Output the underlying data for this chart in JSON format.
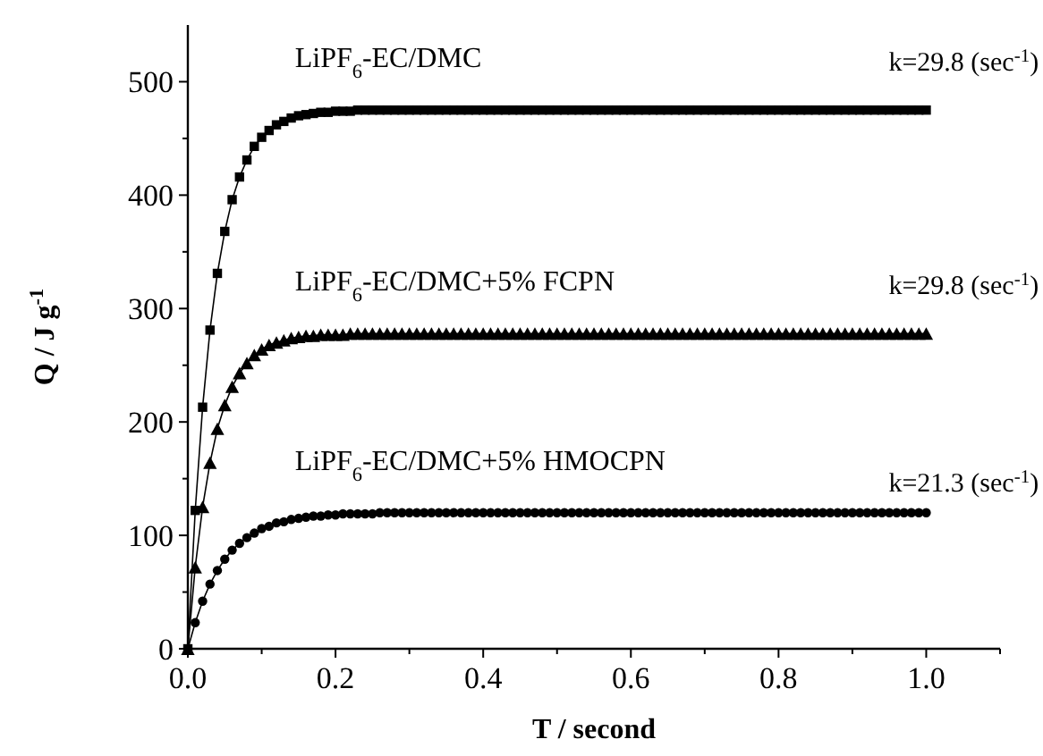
{
  "chart_data": {
    "type": "line",
    "xlabel": "T / second",
    "ylabel": "Q / J g$^{-1}$",
    "xlim": [
      0,
      1.1
    ],
    "ylim": [
      0,
      550
    ],
    "xticks": [
      {
        "value": 0,
        "label": "0.0"
      },
      {
        "value": 0.1,
        "label": null
      },
      {
        "value": 0.2,
        "label": "0.2"
      },
      {
        "value": 0.3,
        "label": null
      },
      {
        "value": 0.4,
        "label": "0.4"
      },
      {
        "value": 0.5,
        "label": null
      },
      {
        "value": 0.6,
        "label": "0.6"
      },
      {
        "value": 0.7,
        "label": null
      },
      {
        "value": 0.8,
        "label": "0.8"
      },
      {
        "value": 0.9,
        "label": null
      },
      {
        "value": 1,
        "label": "1.0"
      },
      {
        "value": 1.1,
        "label": null
      }
    ],
    "yticks": [
      0,
      {
        "value": 50,
        "label": null
      },
      100,
      {
        "value": 150,
        "label": null
      },
      200,
      {
        "value": 250,
        "label": null
      },
      300,
      {
        "value": 350,
        "label": null
      },
      400,
      {
        "value": 450,
        "label": null
      },
      500
    ],
    "x": [
      0,
      0.01,
      0.02,
      0.03,
      0.04,
      0.05,
      0.06,
      0.07,
      0.08,
      0.09,
      0.1,
      0.11,
      0.12,
      0.13,
      0.14,
      0.15,
      0.16,
      0.17,
      0.18,
      0.19,
      0.2,
      0.21,
      0.22,
      0.23,
      0.24,
      0.25,
      0.26,
      0.27,
      0.28,
      0.29,
      0.3,
      0.31,
      0.32,
      0.33,
      0.34,
      0.35,
      0.36,
      0.37,
      0.38,
      0.39,
      0.4,
      0.41,
      0.42,
      0.43,
      0.44,
      0.45,
      0.46,
      0.47,
      0.48,
      0.49,
      0.5,
      0.51,
      0.52,
      0.53,
      0.54,
      0.55,
      0.56,
      0.57,
      0.58,
      0.59,
      0.6,
      0.61,
      0.62,
      0.63,
      0.64,
      0.65,
      0.66,
      0.67,
      0.68,
      0.69,
      0.7,
      0.71,
      0.72,
      0.73,
      0.74,
      0.75,
      0.76,
      0.77,
      0.78,
      0.79,
      0.8,
      0.81,
      0.82,
      0.83,
      0.84,
      0.85,
      0.86,
      0.87,
      0.88,
      0.89,
      0.9,
      0.91,
      0.92,
      0.93,
      0.94,
      0.95,
      0.96,
      0.97,
      0.98,
      0.99,
      1
    ],
    "series": [
      {
        "name": "LiPF$_{6}$-EC/DMC",
        "color": "#000000",
        "marker": "square",
        "values": [
          0,
          122,
          213,
          281,
          331,
          368,
          396,
          416,
          431,
          443,
          451,
          457,
          462,
          465,
          468,
          470,
          471,
          472,
          473,
          473,
          474,
          474,
          474,
          475,
          475,
          475,
          475,
          475,
          475,
          475,
          475,
          475,
          475,
          475,
          475,
          475,
          475,
          475,
          475,
          475,
          475,
          475,
          475,
          475,
          475,
          475,
          475,
          475,
          475,
          475,
          475,
          475,
          475,
          475,
          475,
          475,
          475,
          475,
          475,
          475,
          475,
          475,
          475,
          475,
          475,
          475,
          475,
          475,
          475,
          475,
          475,
          475,
          475,
          475,
          475,
          475,
          475,
          475,
          475,
          475,
          475,
          475,
          475,
          475,
          475,
          475,
          475,
          475,
          475,
          475,
          475,
          475,
          475,
          475,
          475,
          475,
          475,
          475,
          475,
          475,
          475
        ]
      },
      {
        "name": "LiPF$_{6}$-EC/DMC+5% FCPN",
        "color": "#000000",
        "marker": "triangle",
        "values": [
          0,
          72,
          125,
          164,
          194,
          215,
          231,
          243,
          252,
          259,
          264,
          268,
          270,
          272,
          274,
          275,
          276,
          276,
          277,
          277,
          277,
          277,
          278,
          278,
          278,
          278,
          278,
          278,
          278,
          278,
          278,
          278,
          278,
          278,
          278,
          278,
          278,
          278,
          278,
          278,
          278,
          278,
          278,
          278,
          278,
          278,
          278,
          278,
          278,
          278,
          278,
          278,
          278,
          278,
          278,
          278,
          278,
          278,
          278,
          278,
          278,
          278,
          278,
          278,
          278,
          278,
          278,
          278,
          278,
          278,
          278,
          278,
          278,
          278,
          278,
          278,
          278,
          278,
          278,
          278,
          278,
          278,
          278,
          278,
          278,
          278,
          278,
          278,
          278,
          278,
          278,
          278,
          278,
          278,
          278,
          278,
          278,
          278,
          278,
          278,
          278
        ]
      },
      {
        "name": "LiPF$_{6}$-EC/DMC+5% HMOCPN",
        "color": "#000000",
        "marker": "circle",
        "values": [
          0,
          23,
          42,
          57,
          69,
          79,
          87,
          93,
          98,
          102,
          106,
          108,
          111,
          112,
          114,
          115,
          116,
          117,
          117,
          118,
          118,
          119,
          119,
          119,
          119,
          119,
          120,
          120,
          120,
          120,
          120,
          120,
          120,
          120,
          120,
          120,
          120,
          120,
          120,
          120,
          120,
          120,
          120,
          120,
          120,
          120,
          120,
          120,
          120,
          120,
          120,
          120,
          120,
          120,
          120,
          120,
          120,
          120,
          120,
          120,
          120,
          120,
          120,
          120,
          120,
          120,
          120,
          120,
          120,
          120,
          120,
          120,
          120,
          120,
          120,
          120,
          120,
          120,
          120,
          120,
          120,
          120,
          120,
          120,
          120,
          120,
          120,
          120,
          120,
          120,
          120,
          120,
          120,
          120,
          120,
          120,
          120,
          120,
          120,
          120,
          120
        ]
      }
    ],
    "annotations": [
      "k=29.8 (sec$^{-1}$)",
      "k=29.8 (sec$^{-1}$)",
      "k=21.3 (sec$^{-1}$)"
    ],
    "line_style": "solid",
    "grid": false
  }
}
